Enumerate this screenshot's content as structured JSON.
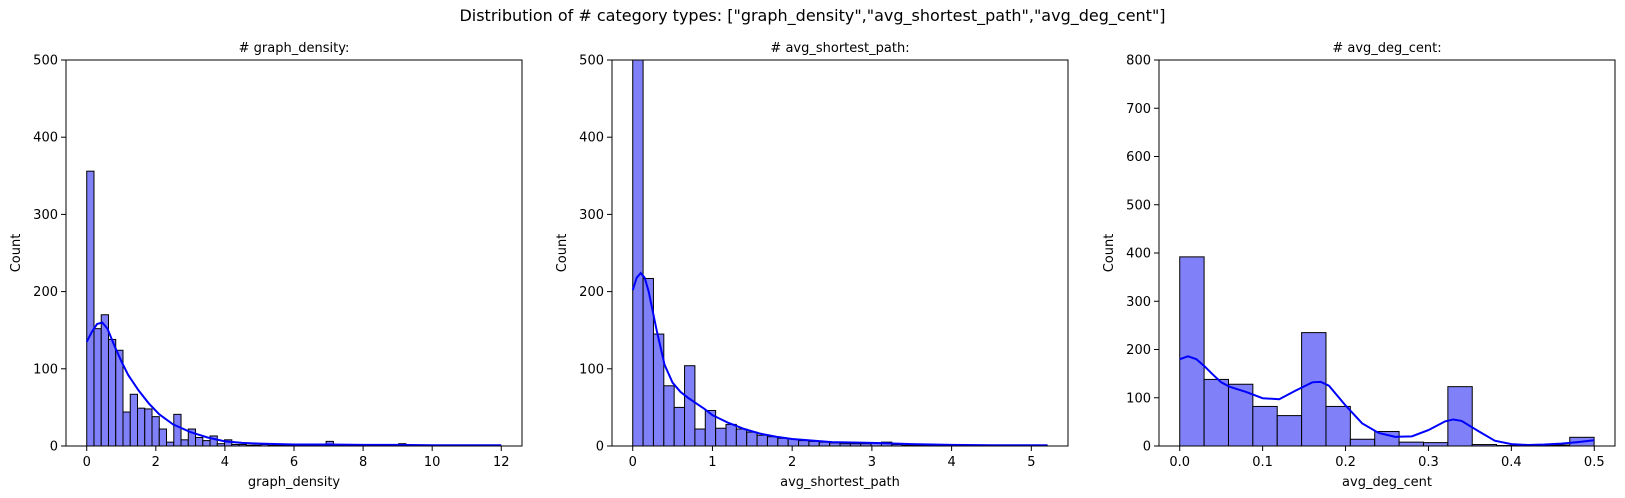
{
  "figure": {
    "suptitle": "Distribution of # category types: [\"graph_density\",\"avg_shortest_path\",\"avg_deg_cent\"]"
  },
  "colors": {
    "bar_fill": "#8080f8",
    "bar_edge": "#000000",
    "kde_line": "#0000ff"
  },
  "chart_data": [
    {
      "type": "bar",
      "title": "# graph_density:",
      "xlabel": "graph_density",
      "ylabel": "Count",
      "xlim": [
        -0.6,
        12.6
      ],
      "ylim": [
        0,
        500
      ],
      "xticks": [
        0,
        2,
        4,
        6,
        8,
        10,
        12
      ],
      "xtick_labels": [
        "0",
        "2",
        "4",
        "6",
        "8",
        "10",
        "12"
      ],
      "yticks": [
        0,
        100,
        200,
        300,
        400,
        500
      ],
      "ytick_labels": [
        "0",
        "100",
        "200",
        "300",
        "400",
        "500"
      ],
      "grid": false,
      "bin_width": 0.21,
      "bins": [
        [
          0.0,
          356
        ],
        [
          0.21,
          152
        ],
        [
          0.42,
          170
        ],
        [
          0.63,
          138
        ],
        [
          0.84,
          124
        ],
        [
          1.05,
          44
        ],
        [
          1.26,
          67
        ],
        [
          1.47,
          49
        ],
        [
          1.68,
          48
        ],
        [
          1.89,
          38
        ],
        [
          2.1,
          22
        ],
        [
          2.31,
          5
        ],
        [
          2.52,
          41
        ],
        [
          2.73,
          8
        ],
        [
          2.94,
          22
        ],
        [
          3.15,
          11
        ],
        [
          3.36,
          7
        ],
        [
          3.57,
          13
        ],
        [
          3.78,
          3
        ],
        [
          3.99,
          8
        ],
        [
          4.2,
          2
        ],
        [
          4.41,
          2
        ],
        [
          4.62,
          1
        ],
        [
          4.83,
          1
        ],
        [
          5.04,
          2
        ],
        [
          5.25,
          1
        ],
        [
          5.46,
          1
        ],
        [
          5.67,
          1
        ],
        [
          5.88,
          1
        ],
        [
          6.09,
          1
        ],
        [
          6.3,
          1
        ],
        [
          6.51,
          1
        ],
        [
          6.93,
          6
        ],
        [
          7.14,
          1
        ],
        [
          7.35,
          1
        ],
        [
          8.19,
          1
        ],
        [
          8.61,
          1
        ],
        [
          9.03,
          3
        ],
        [
          9.45,
          1
        ],
        [
          10.08,
          1
        ],
        [
          11.13,
          1
        ],
        [
          11.76,
          1
        ]
      ],
      "kde": {
        "x": [
          0,
          0.15,
          0.3,
          0.45,
          0.6,
          0.8,
          1.0,
          1.2,
          1.5,
          1.8,
          2.1,
          2.5,
          3.0,
          3.5,
          4.0,
          4.5,
          5.0,
          6.0,
          7.0,
          8.0,
          9.0,
          10.0,
          11.0,
          12.0
        ],
        "y": [
          135,
          148,
          158,
          160,
          152,
          130,
          110,
          92,
          72,
          55,
          41,
          28,
          18,
          11,
          6,
          4,
          3,
          2,
          2,
          1.5,
          1.5,
          1,
          1,
          1
        ]
      }
    },
    {
      "type": "bar",
      "title": "# avg_shortest_path:",
      "xlabel": "avg_shortest_path",
      "ylabel": "Count",
      "xlim": [
        -0.26,
        5.46
      ],
      "ylim": [
        0,
        500
      ],
      "xticks": [
        0,
        1,
        2,
        3,
        4,
        5
      ],
      "xtick_labels": [
        "0",
        "1",
        "2",
        "3",
        "4",
        "5"
      ],
      "yticks": [
        0,
        100,
        200,
        300,
        400,
        500
      ],
      "ytick_labels": [
        "0",
        "100",
        "200",
        "300",
        "400",
        "500"
      ],
      "grid": false,
      "bin_width": 0.13,
      "bins": [
        [
          0.0,
          500
        ],
        [
          0.13,
          217
        ],
        [
          0.26,
          145
        ],
        [
          0.39,
          78
        ],
        [
          0.52,
          50
        ],
        [
          0.65,
          104
        ],
        [
          0.78,
          22
        ],
        [
          0.91,
          46
        ],
        [
          1.04,
          23
        ],
        [
          1.17,
          28
        ],
        [
          1.3,
          22
        ],
        [
          1.43,
          18
        ],
        [
          1.56,
          14
        ],
        [
          1.69,
          12
        ],
        [
          1.82,
          10
        ],
        [
          1.95,
          9
        ],
        [
          2.08,
          7
        ],
        [
          2.21,
          6
        ],
        [
          2.34,
          5
        ],
        [
          2.47,
          4
        ],
        [
          2.6,
          3
        ],
        [
          2.73,
          3
        ],
        [
          2.86,
          3
        ],
        [
          2.99,
          4
        ],
        [
          3.12,
          5
        ],
        [
          3.25,
          2
        ],
        [
          3.38,
          1
        ],
        [
          3.51,
          1
        ],
        [
          3.64,
          1
        ],
        [
          3.77,
          1
        ],
        [
          3.9,
          1
        ],
        [
          4.03,
          1
        ],
        [
          4.16,
          1
        ],
        [
          4.29,
          1
        ],
        [
          4.42,
          1
        ],
        [
          4.55,
          1
        ],
        [
          4.68,
          1
        ],
        [
          4.81,
          1
        ],
        [
          4.94,
          1
        ],
        [
          5.07,
          1
        ]
      ],
      "kde": {
        "x": [
          0,
          0.05,
          0.1,
          0.15,
          0.2,
          0.3,
          0.4,
          0.5,
          0.6,
          0.7,
          0.8,
          0.9,
          1.0,
          1.2,
          1.4,
          1.6,
          1.8,
          2.0,
          2.5,
          3.0,
          3.5,
          4.0,
          4.5,
          5.0,
          5.2
        ],
        "y": [
          202,
          218,
          224,
          218,
          200,
          150,
          105,
          82,
          70,
          62,
          55,
          48,
          40,
          30,
          22,
          16,
          12,
          9,
          5,
          4,
          2.5,
          1.5,
          1,
          1,
          1
        ]
      }
    },
    {
      "type": "bar",
      "title": "# avg_deg_cent:",
      "xlabel": "avg_deg_cent",
      "ylabel": "Count",
      "xlim": [
        -0.025,
        0.525
      ],
      "ylim": [
        0,
        800
      ],
      "xticks": [
        0,
        0.1,
        0.2,
        0.3,
        0.4,
        0.5
      ],
      "xtick_labels": [
        "0.0",
        "0.1",
        "0.2",
        "0.3",
        "0.4",
        "0.5"
      ],
      "yticks": [
        0,
        100,
        200,
        300,
        400,
        500,
        600,
        700,
        800
      ],
      "ytick_labels": [
        "0",
        "100",
        "200",
        "300",
        "400",
        "500",
        "600",
        "700",
        "800"
      ],
      "grid": false,
      "bin_width": 0.0294,
      "bins": [
        [
          0.0,
          392
        ],
        [
          0.0294,
          138
        ],
        [
          0.0588,
          128
        ],
        [
          0.0882,
          82
        ],
        [
          0.1176,
          63
        ],
        [
          0.147,
          235
        ],
        [
          0.1764,
          82
        ],
        [
          0.2058,
          14
        ],
        [
          0.2352,
          30
        ],
        [
          0.2646,
          8
        ],
        [
          0.294,
          7
        ],
        [
          0.3234,
          123
        ],
        [
          0.3528,
          3
        ],
        [
          0.3822,
          1
        ],
        [
          0.4116,
          0
        ],
        [
          0.441,
          2
        ],
        [
          0.4704,
          18
        ]
      ],
      "kde": {
        "x": [
          0,
          0.01,
          0.02,
          0.03,
          0.04,
          0.05,
          0.06,
          0.08,
          0.1,
          0.12,
          0.14,
          0.16,
          0.17,
          0.18,
          0.2,
          0.22,
          0.24,
          0.26,
          0.28,
          0.3,
          0.32,
          0.33,
          0.34,
          0.36,
          0.38,
          0.4,
          0.42,
          0.44,
          0.46,
          0.48,
          0.5
        ],
        "y": [
          180,
          186,
          180,
          165,
          148,
          132,
          123,
          112,
          99,
          97,
          115,
          132,
          133,
          125,
          84,
          47,
          27,
          19,
          20,
          33,
          51,
          55,
          52,
          31,
          11,
          4,
          2,
          3,
          5,
          8,
          12
        ]
      }
    }
  ]
}
